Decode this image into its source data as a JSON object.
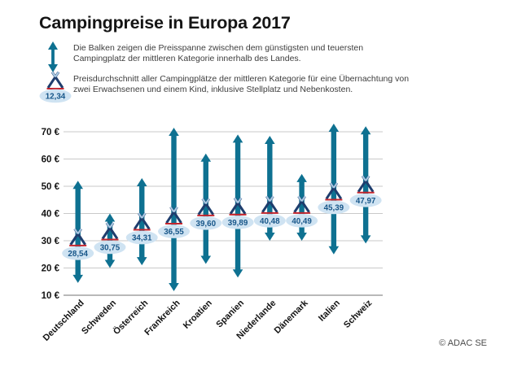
{
  "title": "Campingpreise in Europa 2017",
  "legend": [
    {
      "icon": "price-range-arrow-icon",
      "text": "Die Balken zeigen die Preisspanne zwischen dem günstigsten und teuersten\nCampingplatz der mittleren Kategorie innerhalb des Landes."
    },
    {
      "icon": "average-tent-icon",
      "icon_value": "12,34",
      "text": "Preisdurchschnitt aller Campingplätze der mittleren Kategorie für eine Übernachtung von\nzwei Erwachsenen und einem Kind, inklusive Stellplatz und Nebenkosten."
    }
  ],
  "copyright": "© ADAC SE",
  "colors": {
    "bar": "#0e7191",
    "tent": "#1e3d6d",
    "tent_cross": "#a9c9e3",
    "red_line": "#c4262e",
    "badge_fill": "#cfe3f2",
    "badge_text": "#175689",
    "grid": "#c9c9c9",
    "axis": "#8f8f8f"
  },
  "chart_data": {
    "type": "bar",
    "subtype": "vertical-range-bars-with-average-marker",
    "title": "Campingpreise in Europa 2017",
    "categories": [
      "Deutschland",
      "Schweden",
      "Österreich",
      "Frankreich",
      "Kroatien",
      "Spanien",
      "Niederlande",
      "Dänemark",
      "Italien",
      "Schweiz"
    ],
    "series": [
      {
        "name": "Günstigster Campingplatz (Spannen-Minimum, €)",
        "values": [
          14.5,
          20,
          21,
          11.5,
          21.5,
          16.5,
          30,
          30,
          25,
          29
        ]
      },
      {
        "name": "Teuerster Campingplatz (Spannen-Maximum, €)",
        "values": [
          52,
          40,
          53,
          71.5,
          62,
          69,
          68.5,
          54.5,
          73,
          72
        ]
      },
      {
        "name": "Preisdurchschnitt (€)",
        "values": [
          28.54,
          30.75,
          34.31,
          36.55,
          39.6,
          39.89,
          40.48,
          40.49,
          45.39,
          47.97
        ]
      }
    ],
    "average_labels": [
      "28,54",
      "30,75",
      "34,31",
      "36,55",
      "39,60",
      "39,89",
      "40,48",
      "40,49",
      "45,39",
      "47,97"
    ],
    "yticks": [
      70,
      60,
      50,
      40,
      30,
      20,
      10
    ],
    "ytick_suffix": " €",
    "ylim": [
      10,
      75
    ],
    "grid": true,
    "xlabel": "",
    "ylabel": ""
  }
}
